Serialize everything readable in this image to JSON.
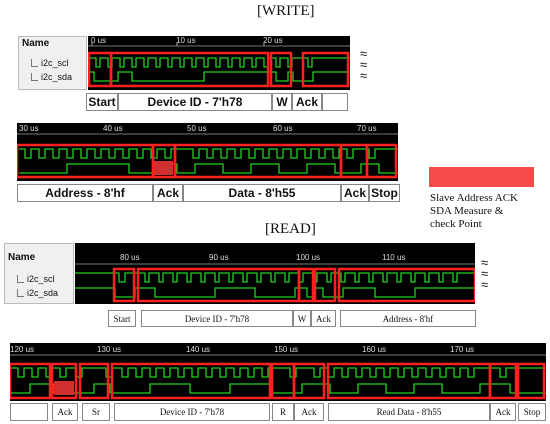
{
  "titles": {
    "write": "[WRITE]",
    "read": "[READ]"
  },
  "name_header": "Name",
  "signals": [
    "i2c_scl",
    "i2c_sda"
  ],
  "legend": {
    "line1": "Slave Address ACK",
    "line2": "SDA Measure &",
    "line3": "check Point",
    "color": "#f44a4a"
  },
  "panel1": {
    "ticks": [
      "0 us",
      "10 us",
      "20 us"
    ],
    "fields": [
      "Start",
      "Device ID - 7'h78",
      "W",
      "Ack"
    ]
  },
  "panel2": {
    "ticks": [
      "30 us",
      "40 us",
      "50 us",
      "60 us",
      "70 us"
    ],
    "fields": [
      "Address - 8'hf",
      "Ack",
      "Data - 8'h55",
      "Ack",
      "Stop"
    ]
  },
  "panel3": {
    "ticks": [
      "80 us",
      "90 us",
      "100 us",
      "110 us"
    ],
    "fields": [
      "Start",
      "Device ID - 7'h78",
      "W",
      "Ack",
      "Address - 8'hf"
    ]
  },
  "panel4": {
    "ticks": [
      "120 us",
      "130 us",
      "140 us",
      "150 us",
      "160 us",
      "170 us"
    ],
    "fields": [
      "Ack",
      "Sr",
      "Device ID - 7'h78",
      "R",
      "Ack",
      "Read Data - 8'h55",
      "Ack",
      "Stop"
    ]
  },
  "colors": {
    "wave_bg": "#000000",
    "trace": "#1fd11f",
    "highlight": "#ff2020",
    "marker": "#d03030"
  }
}
